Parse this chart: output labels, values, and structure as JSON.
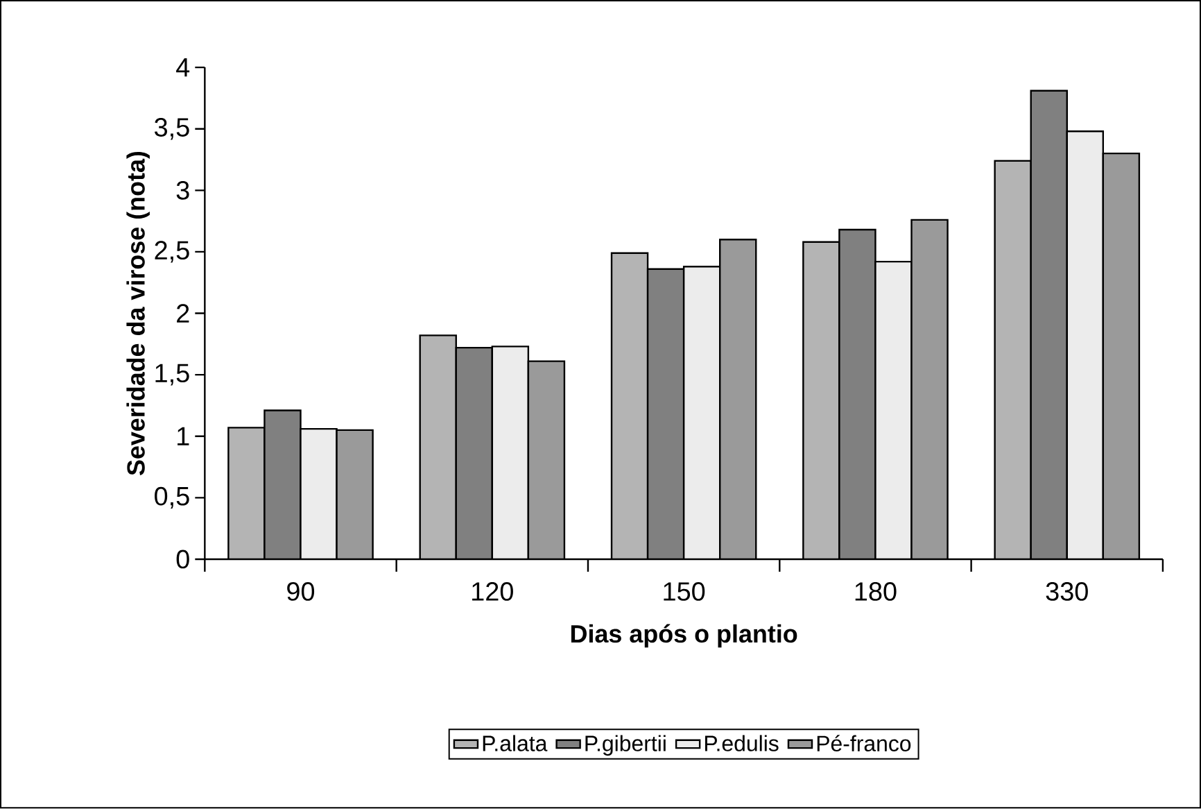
{
  "chart_data": {
    "type": "bar",
    "xlabel": "Dias após o plantio",
    "ylabel": "Severidade da virose (nota)",
    "categories": [
      "90",
      "120",
      "150",
      "180",
      "330"
    ],
    "series": [
      {
        "name": "P.alata",
        "color": "#b4b4b4",
        "values": [
          1.07,
          1.82,
          2.49,
          2.58,
          3.24
        ]
      },
      {
        "name": "P.gibertii",
        "color": "#808080",
        "values": [
          1.21,
          1.72,
          2.36,
          2.68,
          3.81
        ]
      },
      {
        "name": "P.edulis",
        "color": "#ececec",
        "values": [
          1.06,
          1.73,
          2.38,
          2.42,
          3.48
        ]
      },
      {
        "name": "Pé-franco",
        "color": "#9a9a9a",
        "values": [
          1.05,
          1.61,
          2.6,
          2.76,
          3.3
        ]
      }
    ],
    "ylim": [
      0,
      4
    ],
    "yticks": [
      0,
      {
        "value": 0.5,
        "label": "0,5"
      },
      1,
      {
        "value": 1.5,
        "label": "1,5"
      },
      2,
      {
        "value": 2.5,
        "label": "2,5"
      },
      3,
      {
        "value": 3.5,
        "label": "3,5"
      },
      4
    ],
    "legend": "bottom"
  }
}
